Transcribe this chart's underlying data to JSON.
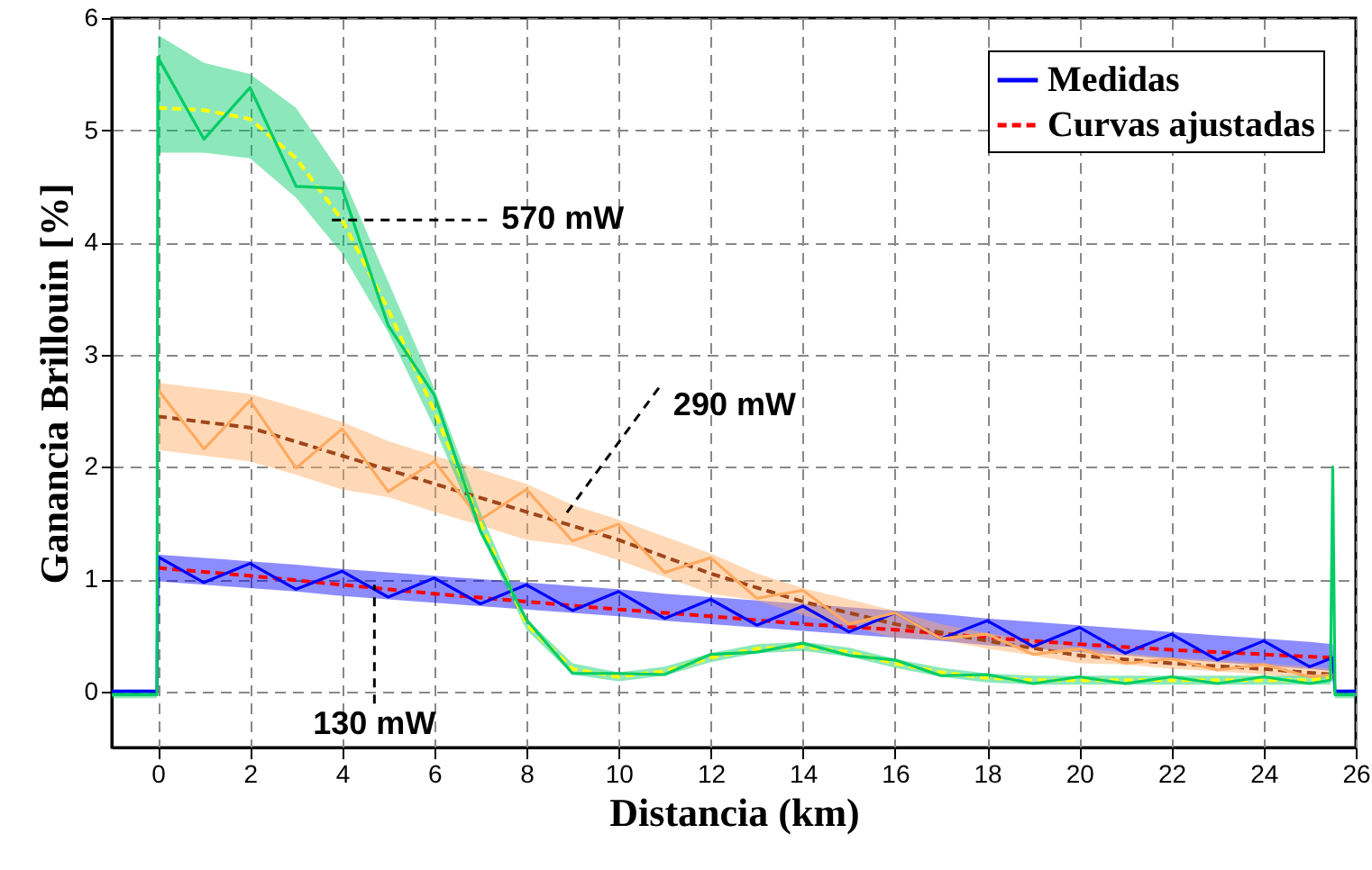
{
  "chart_data": {
    "type": "line",
    "xlabel": "Distancia (km)",
    "ylabel": "Ganancia Brillouin [%]",
    "xlim": [
      -1,
      26
    ],
    "xticks": [
      0,
      2,
      4,
      6,
      8,
      10,
      12,
      14,
      16,
      18,
      20,
      22,
      24,
      26
    ],
    "ylim": [
      -0.5,
      6
    ],
    "yticks": [
      0,
      1,
      2,
      3,
      4,
      5,
      6
    ],
    "grid": true,
    "legend": "top right",
    "marker": "none",
    "annotations": [
      {
        "text": "570 mW",
        "x": 3.7,
        "y": 4.2
      },
      {
        "text": "290 mW",
        "x": 8.8,
        "y": 1.55
      },
      {
        "text": "130 mW",
        "x": 4.7,
        "y": 0.95
      }
    ],
    "series": [
      {
        "name": "Medidas",
        "color": "#0000ff",
        "line_style": "solid",
        "x": [
          -1,
          -0.02,
          0,
          1,
          2,
          3,
          4,
          5,
          6,
          7,
          8,
          9,
          10,
          11,
          12,
          13,
          14,
          15,
          16,
          17,
          18,
          19,
          20,
          21,
          22,
          23,
          24,
          25,
          25.5,
          25.55,
          26
        ],
        "values": [
          0,
          0,
          1.2,
          0.97,
          1.14,
          0.91,
          1.07,
          0.84,
          1.01,
          0.78,
          0.95,
          0.72,
          0.89,
          0.65,
          0.82,
          0.59,
          0.76,
          0.53,
          0.7,
          0.47,
          0.63,
          0.4,
          0.57,
          0.34,
          0.51,
          0.28,
          0.45,
          0.22,
          0.3,
          0,
          0
        ],
        "lower": [
          -0.02,
          -0.02,
          0.98,
          0.95,
          0.92,
          0.89,
          0.85,
          0.82,
          0.79,
          0.76,
          0.73,
          0.7,
          0.67,
          0.63,
          0.6,
          0.57,
          0.54,
          0.51,
          0.48,
          0.45,
          0.41,
          0.38,
          0.35,
          0.32,
          0.29,
          0.26,
          0.23,
          0.2,
          0.18,
          -0.02,
          -0.02
        ],
        "upper": [
          0.02,
          0.02,
          1.22,
          1.19,
          1.16,
          1.13,
          1.09,
          1.06,
          1.03,
          1.0,
          0.97,
          0.94,
          0.91,
          0.87,
          0.84,
          0.81,
          0.78,
          0.75,
          0.72,
          0.69,
          0.65,
          0.62,
          0.59,
          0.56,
          0.53,
          0.5,
          0.47,
          0.44,
          0.42,
          0.02,
          0.02
        ]
      },
      {
        "color": "#ffaa60",
        "line_style": "solid",
        "x": [
          0,
          1,
          2,
          3,
          4,
          5,
          6,
          7,
          8,
          9,
          10,
          11,
          12,
          13,
          14,
          15,
          16,
          17,
          18,
          19,
          20,
          21,
          22,
          23,
          24,
          25,
          25.5
        ],
        "values": [
          2.69,
          2.16,
          2.59,
          1.99,
          2.34,
          1.78,
          2.05,
          1.53,
          1.8,
          1.34,
          1.49,
          1.06,
          1.19,
          0.83,
          0.9,
          0.6,
          0.7,
          0.47,
          0.51,
          0.33,
          0.38,
          0.25,
          0.29,
          0.19,
          0.24,
          0.13,
          0.15
        ],
        "lower": [
          2.15,
          2.1,
          2.05,
          1.93,
          1.8,
          1.73,
          1.6,
          1.48,
          1.35,
          1.3,
          1.17,
          1.02,
          0.87,
          0.81,
          0.68,
          0.58,
          0.48,
          0.46,
          0.38,
          0.32,
          0.25,
          0.24,
          0.2,
          0.18,
          0.15,
          0.12,
          0.1
        ],
        "upper": [
          2.75,
          2.7,
          2.65,
          2.53,
          2.4,
          2.23,
          2.1,
          1.98,
          1.85,
          1.66,
          1.53,
          1.38,
          1.23,
          1.05,
          0.92,
          0.82,
          0.72,
          0.6,
          0.52,
          0.46,
          0.39,
          0.34,
          0.3,
          0.28,
          0.25,
          0.22,
          0.2
        ]
      },
      {
        "color": "#00cc66",
        "line_style": "solid",
        "x": [
          -1,
          -0.02,
          0,
          1,
          2,
          3,
          4,
          5,
          6,
          7,
          8,
          9,
          10,
          11,
          12,
          13,
          14,
          15,
          16,
          17,
          18,
          19,
          20,
          21,
          22,
          23,
          24,
          25,
          25.45,
          25.5,
          25.55,
          26
        ],
        "values": [
          -0.03,
          -0.03,
          5.65,
          4.92,
          5.38,
          4.5,
          4.48,
          3.26,
          2.64,
          1.43,
          0.64,
          0.16,
          0.16,
          0.15,
          0.33,
          0.35,
          0.43,
          0.32,
          0.28,
          0.14,
          0.15,
          0.07,
          0.13,
          0.07,
          0.13,
          0.07,
          0.13,
          0.07,
          0.1,
          2.0,
          -0.03,
          -0.03
        ],
        "lower": [
          -0.06,
          -0.06,
          4.8,
          4.8,
          4.75,
          4.4,
          3.9,
          3.2,
          2.35,
          1.4,
          0.55,
          0.15,
          0.09,
          0.14,
          0.26,
          0.34,
          0.36,
          0.31,
          0.21,
          0.13,
          0.08,
          0.06,
          0.06,
          0.06,
          0.06,
          0.06,
          0.06,
          0.06,
          0.06,
          2.0,
          -0.06,
          -0.06
        ],
        "upper": [
          0,
          0,
          5.85,
          5.6,
          5.5,
          5.2,
          4.6,
          3.65,
          2.7,
          1.6,
          0.65,
          0.25,
          0.17,
          0.22,
          0.34,
          0.42,
          0.44,
          0.39,
          0.29,
          0.21,
          0.16,
          0.14,
          0.14,
          0.14,
          0.14,
          0.14,
          0.14,
          0.14,
          0.14,
          2.0,
          0,
          0
        ]
      },
      {
        "name": "Curvas ajustadas",
        "color": "#ff0000",
        "line_style": "dashed",
        "x": [
          0,
          2,
          4,
          6,
          8,
          10,
          12,
          14,
          16,
          18,
          20,
          22,
          24,
          25.5
        ],
        "values": [
          1.1,
          1.03,
          0.95,
          0.87,
          0.8,
          0.73,
          0.67,
          0.6,
          0.55,
          0.48,
          0.42,
          0.37,
          0.33,
          0.3
        ]
      },
      {
        "color": "#a0461a",
        "line_style": "dashed",
        "x": [
          0,
          2,
          4,
          6,
          8,
          10,
          12,
          14,
          16,
          18,
          20,
          22,
          24,
          25.5
        ],
        "values": [
          2.45,
          2.35,
          2.1,
          1.85,
          1.6,
          1.35,
          1.05,
          0.8,
          0.6,
          0.45,
          0.32,
          0.25,
          0.2,
          0.15
        ]
      },
      {
        "color": "#ffff00",
        "line_style": "dashed",
        "x": [
          0,
          1,
          2,
          3,
          4,
          5,
          6,
          7,
          8,
          9,
          10,
          11,
          12,
          13,
          14,
          15,
          16,
          17,
          18,
          19,
          20,
          21,
          22,
          23,
          24,
          25,
          25.5
        ],
        "values": [
          5.2,
          5.18,
          5.1,
          4.75,
          4.2,
          3.4,
          2.5,
          1.5,
          0.6,
          0.2,
          0.13,
          0.18,
          0.3,
          0.38,
          0.4,
          0.35,
          0.25,
          0.17,
          0.12,
          0.1,
          0.1,
          0.1,
          0.1,
          0.1,
          0.1,
          0.1,
          0.12
        ]
      }
    ]
  }
}
